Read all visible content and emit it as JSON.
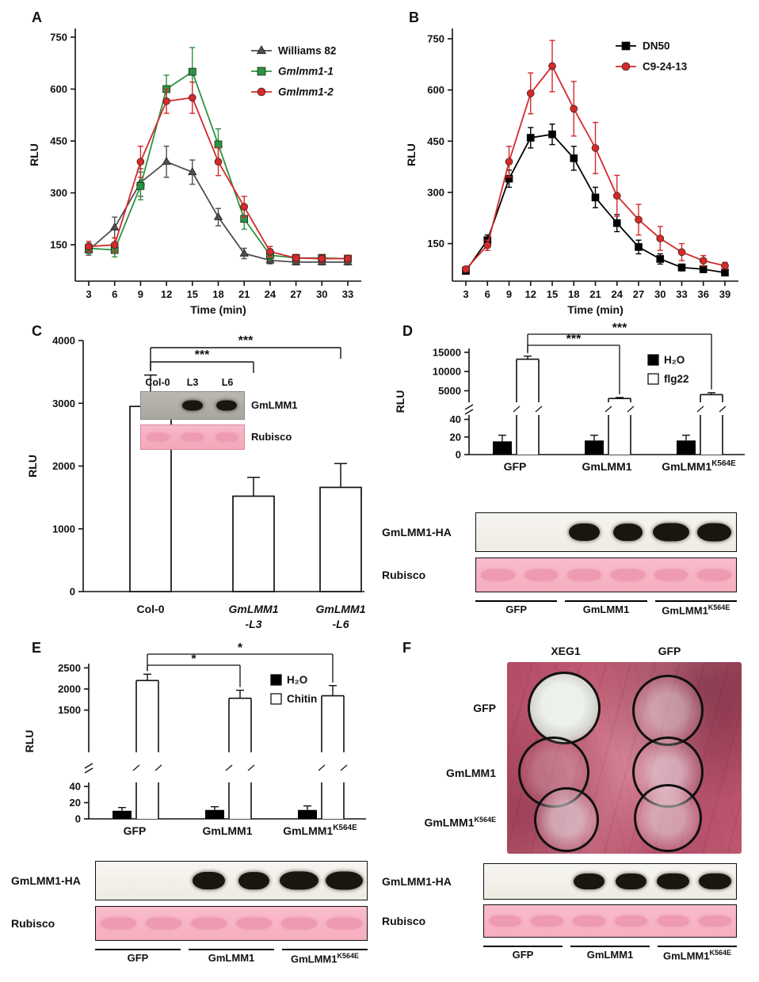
{
  "panels": {
    "A": {
      "label": "A"
    },
    "B": {
      "label": "B"
    },
    "C": {
      "label": "C",
      "inset": {
        "lane_labels": [
          "Col-0",
          "L3",
          "L6"
        ],
        "row_labels": [
          "GmLMM1",
          "Rubisco"
        ]
      }
    },
    "D": {
      "label": "D",
      "blot": {
        "row1": "GmLMM1-HA",
        "row2": "Rubisco",
        "lanes": [
          {
            "base": "GFP"
          },
          {
            "base": "GmLMM1"
          },
          {
            "base": "GmLMM1",
            "sup": "K564E"
          }
        ]
      }
    },
    "E": {
      "label": "E",
      "blot": {
        "row1": "GmLMM1-HA",
        "row2": "Rubisco",
        "lanes": [
          {
            "base": "GFP"
          },
          {
            "base": "GmLMM1"
          },
          {
            "base": "GmLMM1",
            "sup": "K564E"
          }
        ]
      }
    },
    "F": {
      "label": "F",
      "photo": {
        "col_labels": [
          "XEG1",
          "GFP"
        ],
        "row_labels": [
          {
            "base": "GFP"
          },
          {
            "base": "GmLMM1"
          },
          {
            "base": "GmLMM1",
            "sup": "K564E"
          }
        ]
      },
      "blot": {
        "row1": "GmLMM1-HA",
        "row2": "Rubisco",
        "lanes": [
          {
            "base": "GFP"
          },
          {
            "base": "GmLMM1"
          },
          {
            "base": "GmLMM1",
            "sup": "K564E"
          }
        ]
      }
    }
  },
  "chart_data": [
    {
      "id": "A",
      "type": "line",
      "title": "",
      "xlabel": "Time (min)",
      "ylabel": "RLU",
      "x": [
        3,
        6,
        9,
        12,
        15,
        18,
        21,
        24,
        27,
        30,
        33
      ],
      "ylim": [
        45,
        775
      ],
      "yticks": [
        150,
        300,
        450,
        600,
        750
      ],
      "series": [
        {
          "name": "Williams 82",
          "marker": "triangle",
          "color": "#4f4f4f",
          "italic": false,
          "values": [
            135,
            200,
            330,
            390,
            360,
            230,
            125,
            105,
            100,
            100,
            100
          ],
          "errors": [
            15,
            30,
            40,
            45,
            35,
            25,
            15,
            10,
            8,
            8,
            8
          ]
        },
        {
          "name": "Gmlmm1-1",
          "marker": "square",
          "color": "#2c9440",
          "italic": true,
          "values": [
            140,
            135,
            320,
            600,
            650,
            440,
            225,
            120,
            112,
            112,
            110
          ],
          "errors": [
            15,
            20,
            40,
            40,
            70,
            45,
            30,
            12,
            10,
            10,
            10
          ]
        },
        {
          "name": "Gmlmm1-2",
          "marker": "circle",
          "color": "#d42a2a",
          "italic": true,
          "values": [
            145,
            150,
            390,
            565,
            575,
            390,
            260,
            130,
            112,
            110,
            110
          ],
          "errors": [
            15,
            20,
            45,
            35,
            45,
            40,
            30,
            15,
            10,
            10,
            10
          ]
        }
      ]
    },
    {
      "id": "B",
      "type": "line",
      "title": "",
      "xlabel": "Time (min)",
      "ylabel": "RLU",
      "x": [
        3,
        6,
        9,
        12,
        15,
        18,
        21,
        24,
        27,
        30,
        33,
        36,
        39
      ],
      "ylim": [
        40,
        780
      ],
      "yticks": [
        150,
        300,
        450,
        600,
        750
      ],
      "series": [
        {
          "name": "DN50",
          "marker": "square",
          "color": "#000000",
          "italic": false,
          "values": [
            70,
            160,
            340,
            460,
            470,
            400,
            285,
            210,
            140,
            105,
            80,
            75,
            65
          ],
          "errors": [
            8,
            15,
            25,
            30,
            30,
            35,
            30,
            25,
            20,
            15,
            10,
            10,
            8
          ]
        },
        {
          "name": "C9-24-13",
          "marker": "circle",
          "color": "#d42a2a",
          "italic": false,
          "values": [
            75,
            145,
            390,
            590,
            670,
            545,
            430,
            290,
            220,
            165,
            125,
            100,
            85
          ],
          "errors": [
            8,
            15,
            45,
            60,
            75,
            80,
            75,
            60,
            45,
            35,
            25,
            15,
            10
          ]
        }
      ]
    },
    {
      "id": "C",
      "type": "bar",
      "ylabel": "RLU",
      "categories": [
        [
          "Col-0"
        ],
        [
          "GmLMM1",
          "-L3"
        ],
        [
          "GmLMM1",
          "-L6"
        ]
      ],
      "italic": [
        false,
        true,
        true
      ],
      "values": [
        2950,
        1520,
        1660
      ],
      "errors": [
        500,
        300,
        380
      ],
      "ylim": [
        0,
        4000
      ],
      "yticks": [
        0,
        1000,
        2000,
        3000,
        4000
      ],
      "sig": [
        {
          "from": 0,
          "to": 1,
          "label": "***"
        },
        {
          "from": 0,
          "to": 2,
          "label": "***"
        }
      ]
    },
    {
      "id": "D",
      "type": "broken_bar",
      "ylabel": "RLU",
      "groups": [
        {
          "base": "GFP"
        },
        {
          "base": "GmLMM1"
        },
        {
          "base": "GmLMM1",
          "sup": "K564E"
        }
      ],
      "legend": [
        {
          "label": "H₂O",
          "fill": "#000000"
        },
        {
          "label": "flg22",
          "fill": "#ffffff"
        }
      ],
      "lower": {
        "lim": [
          0,
          45
        ],
        "ticks": [
          0,
          20,
          40
        ]
      },
      "upper": {
        "lim": [
          2000,
          16000
        ],
        "ticks": [
          5000,
          10000,
          15000
        ]
      },
      "series": [
        {
          "name": "H₂O",
          "values": [
            15,
            16,
            16
          ],
          "errors": [
            7,
            6,
            6
          ]
        },
        {
          "name": "flg22",
          "values": [
            13200,
            3000,
            4000
          ],
          "errors": [
            800,
            250,
            500
          ]
        }
      ],
      "sig": [
        {
          "to": 1,
          "label": "***"
        },
        {
          "to": 2,
          "label": "***"
        }
      ]
    },
    {
      "id": "E",
      "type": "broken_bar",
      "ylabel": "RLU",
      "groups": [
        {
          "base": "GFP"
        },
        {
          "base": "GmLMM1"
        },
        {
          "base": "GmLMM1",
          "sup": "K564E"
        }
      ],
      "legend": [
        {
          "label": "H₂O",
          "fill": "#000000"
        },
        {
          "label": "Chitin",
          "fill": "#ffffff"
        }
      ],
      "lower": {
        "lim": [
          0,
          45
        ],
        "ticks": [
          0,
          20,
          40
        ]
      },
      "upper": {
        "lim": [
          500,
          2600
        ],
        "ticks": [
          1500,
          2000,
          2500
        ]
      },
      "series": [
        {
          "name": "H₂O",
          "values": [
            10,
            11,
            11
          ],
          "errors": [
            4,
            4,
            5
          ]
        },
        {
          "name": "Chitin",
          "values": [
            2200,
            1780,
            1840
          ],
          "errors": [
            150,
            190,
            240
          ]
        }
      ],
      "sig": [
        {
          "to": 1,
          "label": "*"
        },
        {
          "to": 2,
          "label": "*"
        }
      ]
    }
  ],
  "blot_bands": {
    "C_inset": {
      "GmLMM1": [
        0,
        1,
        1
      ],
      "Rubisco": [
        1,
        1,
        1
      ]
    },
    "D": {
      "GmLMM1_HA": [
        0,
        0,
        1,
        0.95,
        1.15,
        1.1
      ],
      "Rubisco": [
        1,
        1,
        1,
        1,
        1,
        1
      ]
    },
    "E": {
      "GmLMM1_HA": [
        0,
        0,
        1,
        0.95,
        1.2,
        1.15
      ],
      "Rubisco": [
        1,
        1,
        1,
        1,
        1,
        1
      ]
    },
    "F": {
      "GmLMM1_HA": [
        0,
        0,
        1,
        1,
        1.05,
        1.05
      ],
      "Rubisco": [
        1,
        1,
        1,
        1,
        1,
        1
      ]
    }
  }
}
